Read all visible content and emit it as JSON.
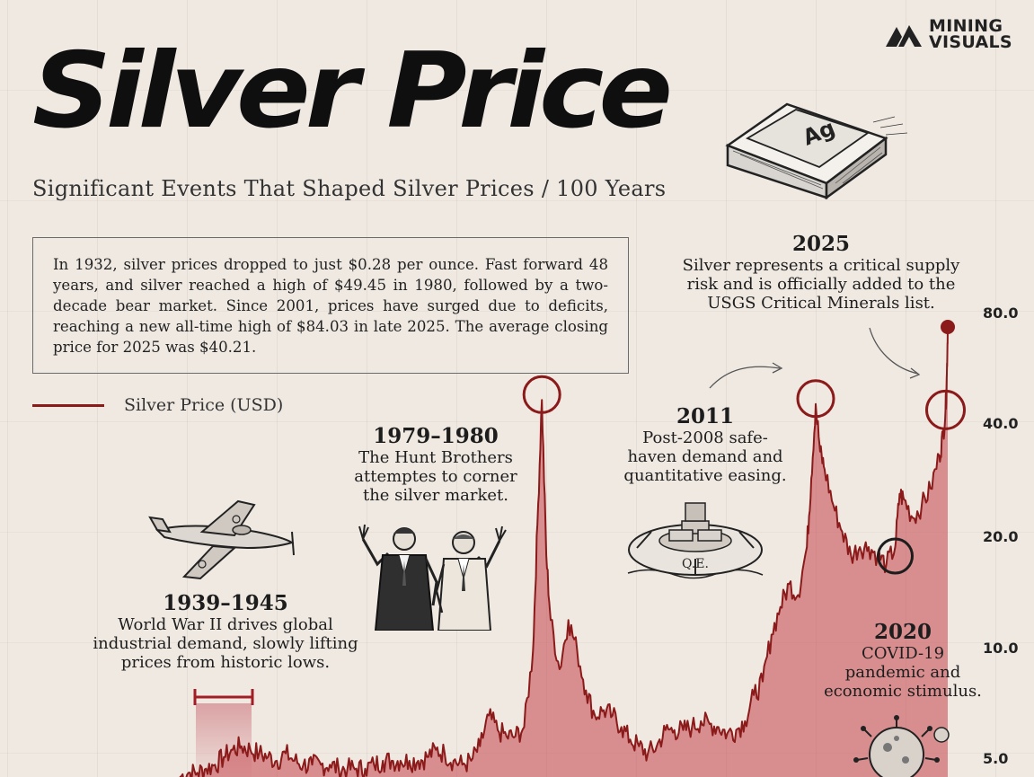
{
  "brand": {
    "logo_line1": "MINING",
    "logo_line2": "VISUALS"
  },
  "title": "Silver Price",
  "subtitle": "Significant Events That Shaped Silver Prices / 100 Years",
  "ingot_label": "Ag",
  "summary": "In 1932, silver prices dropped to just $0.28 per ounce. Fast forward 48 years, and silver reached a high of $49.45 in 1980, followed by a two-decade bear market. Since 2001, prices have surged due to deficits, reaching a new all-time high of $84.03 in late 2025. The average closing price for 2025 was $40.21.",
  "colors": {
    "series": "#8b1a1a",
    "area": "#c9555c",
    "background": "#efe9e2"
  },
  "annotations": {
    "ww2": {
      "year": "1939–1945",
      "text": [
        "World War II drives global",
        "industrial demand, slowly lifting",
        "prices from historic lows."
      ]
    },
    "hunt": {
      "year": "1979–1980",
      "text": [
        "The Hunt Brothers",
        "attemptes to corner",
        "the silver market."
      ]
    },
    "y2011": {
      "year": "2011",
      "text": [
        "Post-2008 safe-",
        "haven demand and",
        "quantitative easing."
      ]
    },
    "y2025": {
      "year": "2025",
      "text": [
        "Silver represents a critical supply",
        "risk and is officially added to the",
        "USGS Critical Minerals list."
      ]
    },
    "y2020": {
      "year": "2020",
      "text": [
        "COVID-19",
        "pandemic and",
        "economic stimulus."
      ]
    }
  },
  "qe_label": "Q.E.",
  "icons": [
    "mining-visuals-logo-icon",
    "silver-ingot-icon",
    "fighter-plane-icon",
    "hunt-brothers-illustration",
    "qe-life-ring-icon",
    "covid-virus-icon"
  ],
  "chart_data": {
    "type": "area",
    "y_scale": "log",
    "y_ticks": [
      "80.0",
      "40.0",
      "20.0",
      "10.0",
      "5.0"
    ],
    "y_tick_values": [
      80,
      40,
      20,
      10,
      5
    ],
    "legend": "Silver Price (USD)",
    "x": [
      1939,
      1940,
      1941,
      1942,
      1943,
      1944,
      1945,
      1946,
      1947,
      1948,
      1949,
      1950,
      1951,
      1952,
      1953,
      1954,
      1955,
      1956,
      1957,
      1958,
      1959,
      1960,
      1961,
      1962,
      1963,
      1964,
      1965,
      1966,
      1967,
      1968,
      1969,
      1970,
      1971,
      1972,
      1973,
      1974,
      1975,
      1976,
      1977,
      1978,
      1979,
      1979.5,
      1980,
      1980.5,
      1981,
      1982,
      1983,
      1984,
      1985,
      1986,
      1987,
      1988,
      1989,
      1990,
      1991,
      1992,
      1993,
      1994,
      1995,
      1996,
      1997,
      1998,
      1999,
      2000,
      2001,
      2002,
      2003,
      2004,
      2005,
      2006,
      2007,
      2008,
      2009,
      2010,
      2010.5,
      2011,
      2011.5,
      2012,
      2013,
      2014,
      2015,
      2016,
      2017,
      2018,
      2019,
      2020,
      2020.5,
      2021,
      2022,
      2023,
      2024,
      2025,
      2025.4,
      2025.7,
      2025.85,
      2025.95
    ],
    "values": [
      3.2,
      3.3,
      3.3,
      3.4,
      3.5,
      3.7,
      3.9,
      4.0,
      3.9,
      3.8,
      3.7,
      3.6,
      3.8,
      3.6,
      3.5,
      3.5,
      3.5,
      3.5,
      3.4,
      3.4,
      3.4,
      3.4,
      3.5,
      3.6,
      3.6,
      3.6,
      3.6,
      3.6,
      3.7,
      3.9,
      3.8,
      3.6,
      3.5,
      3.6,
      4.0,
      5.0,
      4.5,
      4.3,
      4.3,
      4.6,
      8.0,
      20.0,
      49.45,
      16.0,
      10.0,
      7.0,
      10.0,
      8.0,
      6.0,
      5.0,
      5.2,
      5.0,
      4.6,
      4.2,
      4.0,
      3.8,
      4.0,
      4.5,
      4.5,
      4.5,
      4.6,
      4.8,
      4.7,
      4.6,
      4.4,
      4.5,
      4.8,
      5.8,
      6.4,
      9.0,
      11.0,
      13.0,
      12.0,
      17.0,
      28.0,
      48.0,
      34.0,
      30.0,
      23.0,
      19.0,
      16.0,
      17.0,
      17.0,
      16.0,
      15.0,
      17.0,
      25.0,
      24.0,
      21.0,
      23.0,
      26.0,
      33.0,
      38.0,
      46.0,
      60.0,
      84.03
    ]
  }
}
